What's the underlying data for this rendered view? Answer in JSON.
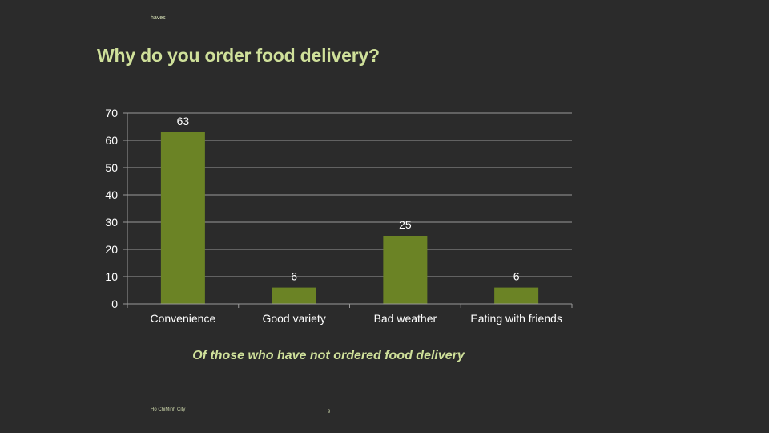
{
  "header": {
    "brand": "haves",
    "title": "Why do you order food delivery?"
  },
  "chart_data": {
    "type": "bar",
    "categories": [
      "Convenience",
      "Good variety",
      "Bad weather",
      "Eating with friends"
    ],
    "values": [
      63,
      6,
      25,
      6
    ],
    "data_labels": [
      "63",
      "6",
      "25",
      "6"
    ],
    "ylim": [
      0,
      70
    ],
    "yticks": [
      0,
      10,
      20,
      30,
      40,
      50,
      60,
      70
    ],
    "grid": true,
    "legend": "none",
    "bar_color": "#6b8325",
    "subtitle": "Of those who have not ordered food delivery"
  },
  "footer": {
    "location": "Ho ChiMinh City",
    "page_number": "9"
  }
}
